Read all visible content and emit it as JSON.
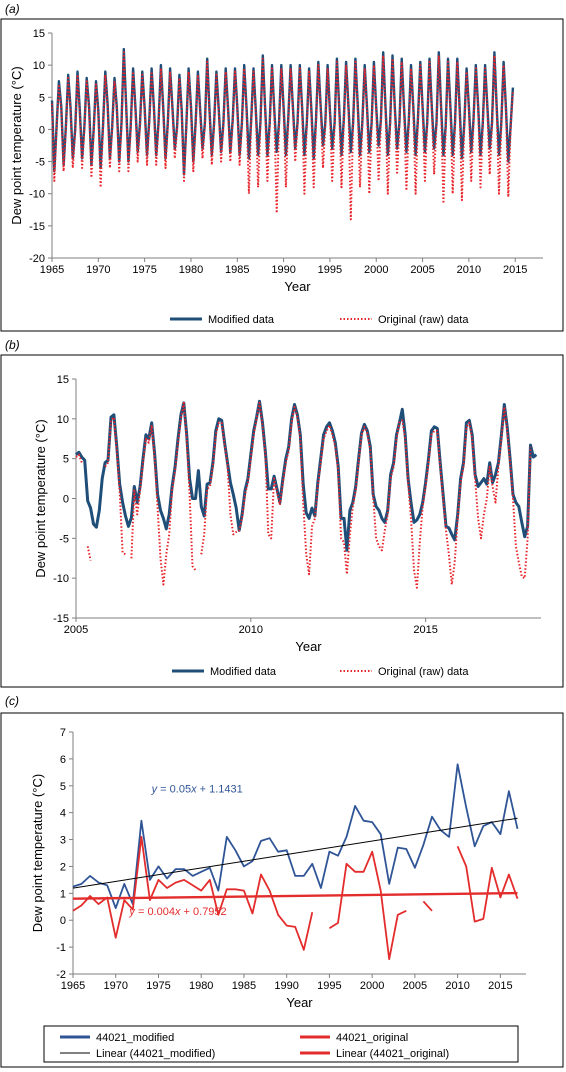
{
  "chart_data": [
    {
      "panel_label": "(a)",
      "type": "line",
      "xlabel": "Year",
      "ylabel": "Dew point temperature (°C)",
      "xlim": [
        1965,
        2018
      ],
      "ylim": [
        -20,
        15
      ],
      "xticks": [
        1965,
        1970,
        1975,
        1980,
        1985,
        1990,
        1995,
        2000,
        2005,
        2010,
        2015
      ],
      "yticks": [
        -20,
        -15,
        -10,
        -5,
        0,
        5,
        10,
        15
      ],
      "grid": false,
      "legend_position": "bottom",
      "x_start": 1965.0,
      "x_step": 0.25,
      "series": [
        {
          "name": "Modified data",
          "color": "#1f4e79",
          "style": "solid",
          "values": [
            4.5,
            -6.5,
            0.5,
            7.5,
            3.5,
            -5.5,
            0.5,
            8.5,
            3.5,
            -4.5,
            0,
            9,
            3,
            -4.5,
            0.5,
            8,
            3.5,
            -5.5,
            0,
            7.5,
            3,
            -6,
            0.5,
            9,
            4,
            -4.5,
            0.5,
            8,
            3.5,
            -5,
            1,
            12.5,
            4,
            -5,
            0.5,
            9.5,
            3.5,
            -3.5,
            1,
            9,
            3.5,
            -4,
            1.5,
            9.5,
            3.5,
            -4,
            1,
            10,
            3.5,
            -4.5,
            1,
            9.5,
            3.5,
            -3,
            0.5,
            8.5,
            3,
            -7,
            0.5,
            9.5,
            3.5,
            -5,
            1,
            9,
            3,
            -3,
            1,
            11,
            3,
            -4,
            1,
            9,
            3,
            -3.5,
            1,
            9.5,
            3.5,
            -3.5,
            1.5,
            9.5,
            3.5,
            -4,
            1,
            10,
            3.5,
            -4.5,
            1.5,
            9.5,
            3,
            -4,
            1,
            11.5,
            3.5,
            -4,
            1,
            10,
            3,
            -3.5,
            1,
            10,
            3.5,
            -4,
            1.5,
            10,
            3.5,
            -3,
            1,
            10,
            3.5,
            -4,
            1,
            9.5,
            3,
            -4.5,
            1.5,
            10.5,
            3.5,
            -2.5,
            1,
            10,
            3,
            -3,
            1,
            11,
            3.5,
            -4,
            1.5,
            10.5,
            3.5,
            -3.5,
            1,
            11,
            4,
            -4,
            1,
            10,
            3.5,
            -3.5,
            1,
            10.5,
            3.5,
            -2.5,
            1.5,
            12,
            3.5,
            -4,
            1,
            11.5,
            3.5,
            -3,
            1,
            11,
            3.5,
            -3.5,
            1,
            10,
            3.5,
            -4,
            1.5,
            10.5,
            3.5,
            -3.5,
            1,
            11,
            3.5,
            -3,
            1,
            12,
            3.5,
            -4,
            0.5,
            11,
            3.5,
            -4,
            1,
            11,
            3.5,
            -4.5,
            1,
            9.5,
            3.5,
            -3.5,
            1.5,
            10,
            3.5,
            -4,
            1,
            10,
            3.5,
            -3,
            1,
            12,
            3.5,
            -4,
            1,
            10.5,
            3.5,
            -5,
            0.5,
            6.5
          ]
        },
        {
          "name": "Original (raw) data",
          "color": "#e8232a",
          "style": "dotted",
          "values": [
            4,
            -8,
            0,
            7,
            3,
            -6.5,
            0,
            8,
            3,
            -6,
            -0.5,
            8.5,
            2.5,
            -6,
            0,
            7.5,
            3,
            -7.5,
            -0.5,
            7,
            2.5,
            -9,
            0,
            8.5,
            3.5,
            -6,
            0,
            7.5,
            3,
            -6.5,
            0.5,
            12,
            3.5,
            -6.5,
            0,
            9,
            3,
            -5,
            0.5,
            8.5,
            3,
            -5.5,
            1,
            9,
            3,
            -5.5,
            0.5,
            9.5,
            3,
            -6,
            0.5,
            9,
            3,
            -4.5,
            0,
            8,
            2.5,
            -8,
            0,
            9,
            3,
            -6.5,
            0.5,
            8.5,
            2.5,
            -4.5,
            0.5,
            10.5,
            2.5,
            -5.5,
            0.5,
            8.5,
            2.5,
            -5,
            0.5,
            9,
            3,
            -5,
            1,
            9,
            3,
            -5.5,
            0.5,
            9.5,
            3,
            -10,
            1,
            9,
            2.5,
            -9,
            0.5,
            11,
            3,
            -8,
            0.5,
            9.5,
            2.5,
            -13,
            0.5,
            9.5,
            3,
            -9,
            1,
            9.5,
            3,
            -5,
            0.5,
            9.5,
            3,
            -10,
            0.5,
            9,
            2.5,
            -9,
            1,
            10,
            3,
            -6,
            0.5,
            9.5,
            2.5,
            -8,
            0.5,
            10.5,
            3,
            -9,
            1,
            10,
            3,
            -14,
            0.5,
            10.5,
            3.5,
            -9,
            0.5,
            9.5,
            3,
            -10,
            0.5,
            10,
            3,
            -8,
            1,
            11.5,
            3,
            -10,
            0.5,
            11,
            3,
            -7,
            0.5,
            10.5,
            3,
            -9.5,
            0.5,
            9.5,
            3,
            -10,
            1,
            10,
            3,
            -8,
            0.5,
            10.5,
            3,
            -7,
            0.5,
            11.5,
            3,
            -11.5,
            0,
            10.5,
            3,
            -10,
            0.5,
            10.5,
            3,
            -11,
            0.5,
            9,
            3,
            -8,
            1,
            9.5,
            3,
            -9,
            0.5,
            9.5,
            3,
            -7,
            0.5,
            11.5,
            3,
            -10,
            0.5,
            10,
            3,
            -10.5,
            0,
            6
          ]
        }
      ]
    },
    {
      "panel_label": "(b)",
      "type": "line",
      "xlabel": "Year",
      "ylabel": "Dew point temperature (°C)",
      "xlim": [
        2005,
        2018.3
      ],
      "ylim": [
        -15,
        15
      ],
      "xticks": [
        2005,
        2010,
        2015
      ],
      "yticks": [
        -15,
        -10,
        -5,
        0,
        5,
        10,
        15
      ],
      "grid": false,
      "legend_position": "bottom",
      "x_start": 2005.0,
      "x_step": 0.08333,
      "series": [
        {
          "name": "Modified data",
          "color": "#1f4e79",
          "style": "solid",
          "values": [
            5.5,
            5.8,
            5.2,
            4.8,
            -0.3,
            -1.2,
            -3.2,
            -3.6,
            -1.5,
            2.5,
            4.5,
            4.8,
            10.2,
            10.5,
            6.5,
            1.8,
            -0.5,
            -2.2,
            -3.5,
            -2.4,
            1.5,
            -0.5,
            1.5,
            5,
            8,
            7.5,
            9.5,
            5.5,
            0.5,
            -1.5,
            -2.5,
            -3.8,
            -2,
            1.5,
            4,
            7.5,
            10.5,
            12,
            8,
            2.5,
            0,
            0,
            3.5,
            -1,
            -2.2,
            1.8,
            2,
            4.5,
            8.5,
            10,
            9.8,
            7,
            4.5,
            2,
            0.5,
            -1.2,
            -4,
            -2,
            1,
            2.5,
            5.5,
            8.5,
            10.2,
            12.2,
            9.5,
            5.8,
            1.2,
            1.2,
            2.8,
            1.2,
            -0.5,
            2.5,
            5,
            6.5,
            10,
            11.8,
            10.5,
            8,
            1.8,
            -1.8,
            -2.5,
            -1.2,
            -2.2,
            2,
            5,
            8,
            9,
            9.5,
            8.5,
            7,
            4,
            -2.5,
            -2.5,
            -6.5,
            -1.5,
            -0.5,
            1.5,
            5,
            8.2,
            9.3,
            8.5,
            6.5,
            0.5,
            -1,
            -1.5,
            -2.5,
            -3,
            -1.5,
            3,
            4.5,
            8,
            9.5,
            11.2,
            8,
            2.5,
            -0.5,
            -3,
            -2.7,
            -2,
            -0.5,
            2,
            5,
            8.5,
            9,
            8.8,
            4.5,
            0.5,
            -3.5,
            -3.7,
            -4.5,
            -5.2,
            -2,
            2.5,
            4.5,
            9.5,
            9.8,
            8,
            3,
            1.5,
            2,
            2.5,
            1.8,
            4.5,
            2,
            3,
            4.5,
            8,
            11.8,
            9,
            5,
            0.5,
            -0.5,
            -1,
            -3,
            -4.8,
            -3.5,
            6.7,
            5.2,
            5.5
          ]
        },
        {
          "name": "Original (raw) data",
          "color": "#e8232a",
          "style": "dotted",
          "values": [
            5.2,
            5.5,
            4.5,
            null,
            -6,
            -7.8,
            null,
            null,
            -2,
            null,
            4,
            4.5,
            9.8,
            10.2,
            6,
            0.8,
            -6.8,
            -7,
            null,
            -7.5,
            1,
            -2,
            1,
            4.5,
            7.5,
            7,
            9.2,
            5,
            -1.2,
            -7.5,
            -10.8,
            -7,
            -4.5,
            1,
            3.5,
            7,
            10,
            12,
            7.5,
            0.5,
            -8.5,
            -9,
            null,
            -7,
            -4.5,
            1.2,
            1.5,
            4,
            8,
            9.5,
            9.5,
            6.8,
            4.2,
            -2,
            -4.5,
            -4.2,
            -4,
            -2.5,
            0.5,
            2,
            5,
            8,
            10,
            12,
            9.2,
            5.5,
            -4.5,
            -5,
            2.5,
            0.8,
            -0.8,
            2,
            4.5,
            6,
            9.5,
            11.5,
            10.2,
            7.5,
            -0.5,
            -7,
            -9.5,
            -3.5,
            -2.5,
            1.5,
            4.5,
            7.5,
            8.5,
            9.2,
            8,
            6.5,
            3.5,
            -5,
            -5.5,
            -9.5,
            -4.5,
            -1,
            1,
            4.5,
            8,
            9,
            8.2,
            6,
            0.2,
            -5,
            -6,
            -6.5,
            -4,
            -2,
            2.5,
            4,
            7.5,
            9.5,
            9.8,
            7.5,
            2,
            -2.5,
            -9,
            -11.2,
            -5.5,
            -1,
            1.5,
            4.5,
            8,
            8.5,
            8.5,
            4,
            0,
            -4,
            -7,
            -10.8,
            -8,
            -2.5,
            2,
            4,
            9,
            9.5,
            7.5,
            2.5,
            -2.5,
            -5,
            -2,
            0,
            4,
            1.5,
            -0.5,
            4,
            7.5,
            11.5,
            8.5,
            4.5,
            0,
            -6,
            -8,
            -9.8,
            -10,
            -5,
            6.5,
            null,
            null
          ]
        }
      ]
    },
    {
      "panel_label": "(c)",
      "type": "line",
      "xlabel": "Year",
      "ylabel": "Dew point temperature (°C)",
      "xlim": [
        1965,
        2018
      ],
      "ylim": [
        -2,
        7
      ],
      "xticks": [
        1965,
        1970,
        1975,
        1980,
        1985,
        1990,
        1995,
        2000,
        2005,
        2010,
        2015
      ],
      "yticks": [
        -2,
        -1,
        0,
        1,
        2,
        3,
        4,
        5,
        6,
        7
      ],
      "grid": false,
      "legend_position": "bottom",
      "x": [
        1965,
        1966,
        1967,
        1968,
        1969,
        1970,
        1971,
        1972,
        1973,
        1974,
        1975,
        1976,
        1977,
        1978,
        1979,
        1980,
        1981,
        1982,
        1983,
        1984,
        1985,
        1986,
        1987,
        1988,
        1989,
        1990,
        1991,
        1992,
        1993,
        1994,
        1995,
        1996,
        1997,
        1998,
        1999,
        2000,
        2001,
        2002,
        2003,
        2004,
        2005,
        2006,
        2007,
        2008,
        2009,
        2010,
        2011,
        2012,
        2013,
        2014,
        2015,
        2016,
        2017
      ],
      "series": [
        {
          "name": "44021_modified",
          "color": "#2f5597",
          "style": "solid",
          "values": [
            1.25,
            1.35,
            1.65,
            1.4,
            1.3,
            0.45,
            1.35,
            0.6,
            3.7,
            1.5,
            2.0,
            1.55,
            1.9,
            1.9,
            1.65,
            1.8,
            1.95,
            1.1,
            3.1,
            2.6,
            2.0,
            2.2,
            2.95,
            3.05,
            2.55,
            2.6,
            1.65,
            1.65,
            2.1,
            1.2,
            2.55,
            2.4,
            3.1,
            4.25,
            3.7,
            3.65,
            3.2,
            1.35,
            2.7,
            2.65,
            1.95,
            2.8,
            3.85,
            3.35,
            3.1,
            5.8,
            4.2,
            2.75,
            3.5,
            3.65,
            3.2,
            4.8,
            3.4
          ]
        },
        {
          "name": "44021_original",
          "color": "#e32c2c",
          "style": "solid",
          "values": [
            0.35,
            0.55,
            0.9,
            0.6,
            0.85,
            -0.65,
            0.75,
            0.4,
            3.1,
            0.75,
            1.5,
            1.2,
            1.4,
            1.5,
            1.3,
            1.1,
            1.5,
            0.2,
            1.15,
            1.15,
            1.1,
            0.25,
            1.7,
            1.1,
            0.2,
            -0.2,
            -0.25,
            -1.1,
            0.3,
            null,
            -0.3,
            -0.1,
            2.1,
            1.8,
            1.8,
            2.55,
            1.1,
            -1.45,
            0.2,
            0.35,
            null,
            0.7,
            0.35,
            null,
            null,
            2.75,
            2.0,
            -0.05,
            0.05,
            1.95,
            0.85,
            1.7,
            0.8
          ]
        },
        {
          "name": "Linear (44021_modified)",
          "color": "#000000",
          "style": "solid",
          "slope": 0.05,
          "intercept": 1.1431
        },
        {
          "name": "Linear (44021_original)",
          "color": "#e32c2c",
          "style": "solid",
          "slope": 0.004,
          "intercept": 0.7952
        }
      ],
      "annotations": [
        {
          "text_lead": "y",
          "text_mid": " = 0.05",
          "text_var": "x",
          "text_tail": " + 1.1431",
          "color": "#2f5597",
          "x": 1974.2,
          "y": 4.75
        },
        {
          "text_lead": "y",
          "text_mid": " = 0.004",
          "text_var": "x",
          "text_tail": " + 0.7952",
          "color": "#e32c2c",
          "x": 1971.6,
          "y": 0.2
        }
      ]
    }
  ]
}
